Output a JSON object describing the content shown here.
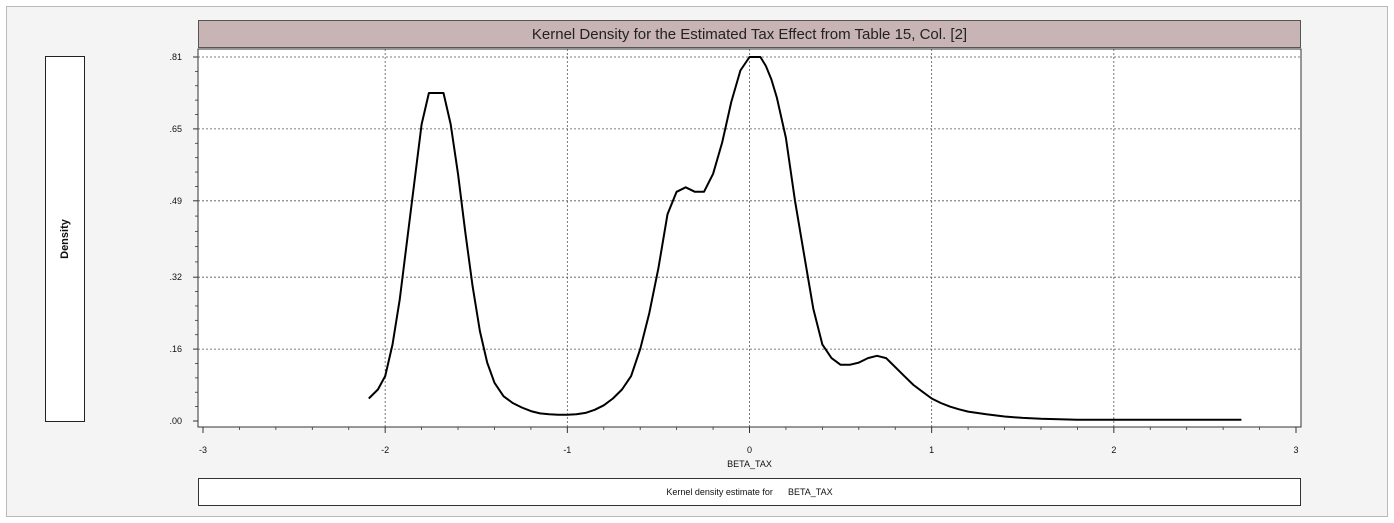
{
  "chart_data": {
    "type": "line",
    "title": "Kernel Density for the Estimated Tax Effect from Table 15, Col. [2]",
    "xlabel": "BETA_TAX",
    "ylabel": "Density",
    "caption_prefix": "Kernel density estimate for",
    "caption_variable": "BETA_TAX",
    "xlim": [
      -3,
      3
    ],
    "ylim": [
      0,
      0.81
    ],
    "x_ticks": [
      -3,
      -2,
      -1,
      0,
      1,
      2,
      3
    ],
    "x_tick_labels": [
      "-3",
      "-2",
      "-1",
      "0",
      "1",
      "2",
      "3"
    ],
    "y_ticks": [
      0,
      0.16,
      0.32,
      0.49,
      0.65,
      0.81
    ],
    "y_tick_labels": [
      ".00",
      ".16",
      ".32",
      ".49",
      ".65",
      ".81"
    ],
    "grid": true,
    "series": [
      {
        "x": [
          -2.09,
          -2.04,
          -2.0,
          -1.96,
          -1.92,
          -1.88,
          -1.84,
          -1.8,
          -1.76,
          -1.72,
          -1.68,
          -1.64,
          -1.6,
          -1.56,
          -1.52,
          -1.48,
          -1.44,
          -1.4,
          -1.35,
          -1.3,
          -1.25,
          -1.2,
          -1.15,
          -1.1,
          -1.05,
          -1.0,
          -0.95,
          -0.9,
          -0.85,
          -0.8,
          -0.75,
          -0.7,
          -0.65,
          -0.6,
          -0.55,
          -0.5,
          -0.45,
          -0.4,
          -0.35,
          -0.3,
          -0.25,
          -0.2,
          -0.15,
          -0.1,
          -0.05,
          0.0,
          0.03,
          0.06,
          0.09,
          0.12,
          0.15,
          0.2,
          0.25,
          0.3,
          0.35,
          0.4,
          0.45,
          0.5,
          0.55,
          0.6,
          0.65,
          0.7,
          0.75,
          0.8,
          0.85,
          0.9,
          0.95,
          1.0,
          1.05,
          1.1,
          1.15,
          1.2,
          1.3,
          1.4,
          1.5,
          1.6,
          1.7,
          1.8,
          1.9,
          2.0,
          2.2,
          2.4,
          2.6,
          2.7
        ],
        "y": [
          0.05,
          0.07,
          0.1,
          0.17,
          0.27,
          0.4,
          0.53,
          0.66,
          0.73,
          0.73,
          0.73,
          0.66,
          0.55,
          0.42,
          0.3,
          0.2,
          0.13,
          0.085,
          0.055,
          0.04,
          0.03,
          0.022,
          0.017,
          0.015,
          0.014,
          0.014,
          0.015,
          0.018,
          0.025,
          0.035,
          0.05,
          0.07,
          0.1,
          0.16,
          0.24,
          0.34,
          0.46,
          0.51,
          0.52,
          0.51,
          0.51,
          0.55,
          0.62,
          0.71,
          0.78,
          0.81,
          0.81,
          0.81,
          0.79,
          0.76,
          0.72,
          0.63,
          0.49,
          0.37,
          0.25,
          0.17,
          0.14,
          0.125,
          0.125,
          0.13,
          0.14,
          0.145,
          0.14,
          0.12,
          0.1,
          0.08,
          0.065,
          0.05,
          0.04,
          0.032,
          0.026,
          0.021,
          0.015,
          0.01,
          0.007,
          0.005,
          0.004,
          0.003,
          0.003,
          0.003,
          0.003,
          0.003,
          0.003,
          0.003
        ]
      }
    ]
  }
}
